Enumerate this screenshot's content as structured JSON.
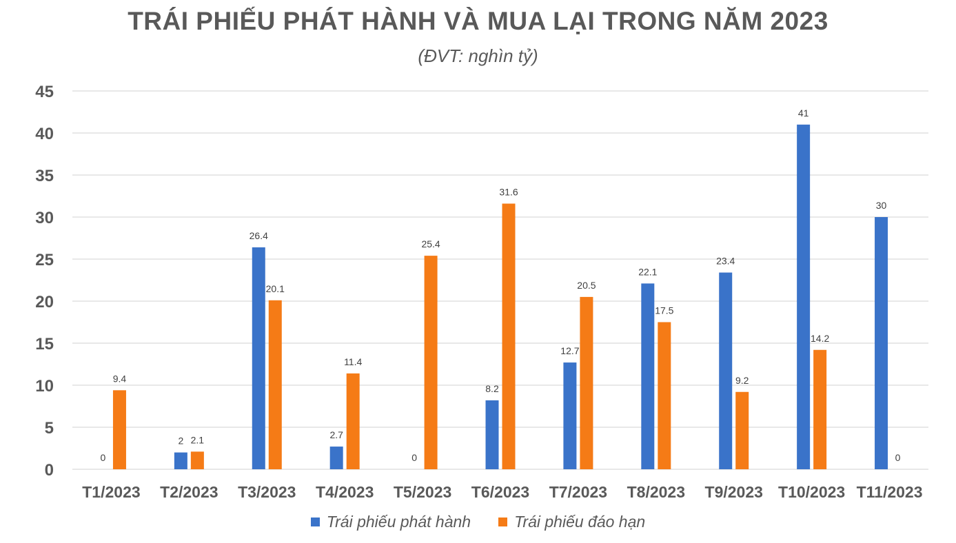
{
  "title": "TRÁI PHIẾU PHÁT HÀNH VÀ MUA LẠI TRONG NĂM 2023",
  "subtitle": "(ĐVT: nghìn tỷ)",
  "colors": {
    "issued": "#3a73c9",
    "matured": "#f57b16",
    "grid": "#d9d9d9",
    "axis_text": "#595959",
    "label_text": "#404040"
  },
  "chart_data": {
    "type": "bar",
    "categories": [
      "T1/2023",
      "T2/2023",
      "T3/2023",
      "T4/2023",
      "T5/2023",
      "T6/2023",
      "T7/2023",
      "T8/2023",
      "T9/2023",
      "T10/2023",
      "T11/2023"
    ],
    "series": [
      {
        "name": "Trái phiếu phát hành",
        "values": [
          0,
          2,
          26.4,
          2.7,
          0,
          8.2,
          12.7,
          22.1,
          23.4,
          41,
          30
        ]
      },
      {
        "name": "Trái phiếu đáo hạn",
        "values": [
          9.4,
          2.1,
          20.1,
          11.4,
          25.4,
          31.6,
          20.5,
          17.5,
          9.2,
          14.2,
          0
        ]
      }
    ],
    "yticks": [
      0,
      5,
      10,
      15,
      20,
      25,
      30,
      35,
      40,
      45
    ],
    "ylim": [
      0,
      45
    ],
    "grid": true,
    "legend_position": "bottom"
  }
}
